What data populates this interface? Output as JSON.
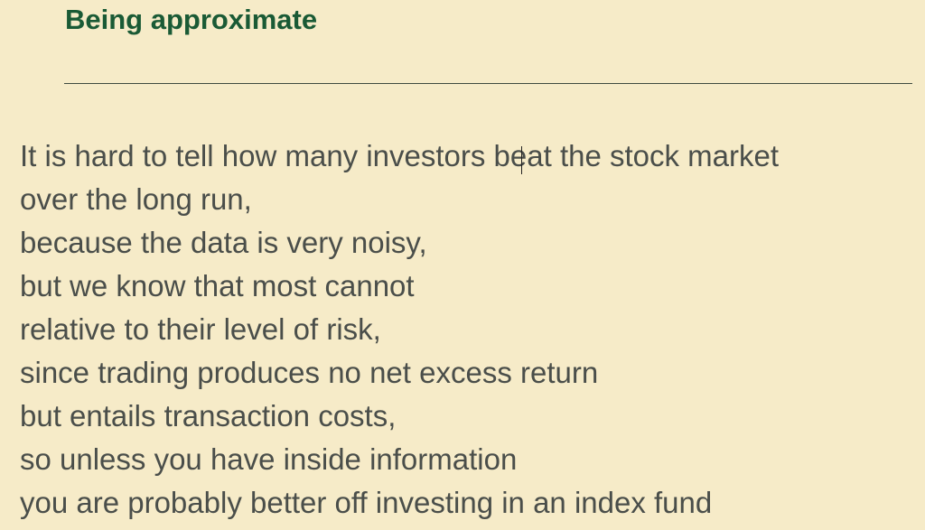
{
  "slide": {
    "title": "Being approximate",
    "lines": [
      "It is hard to tell how many investors beat the stock market",
      "over the long run,",
      "because the data is very noisy,",
      "but we know that most cannot",
      "relative to their level of risk,",
      "since trading produces no net excess return",
      "but entails transaction costs,",
      "so unless you have inside information",
      "you are probably better off investing in an index fund"
    ]
  },
  "colors": {
    "background": "#f6ebc8",
    "title": "#1a5a35",
    "body_text": "#4a4e4a",
    "rule": "#3f4a40"
  }
}
